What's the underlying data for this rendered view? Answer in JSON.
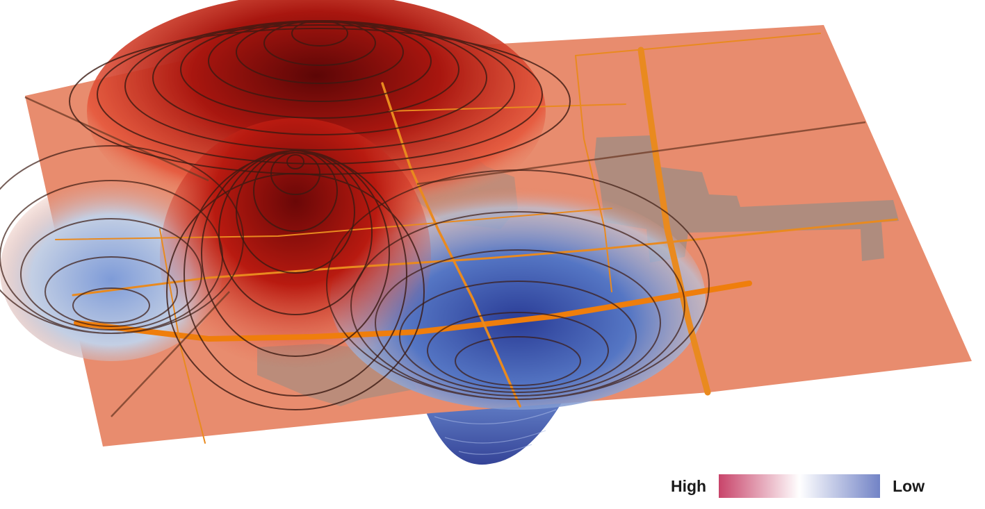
{
  "legend": {
    "high_label": "High",
    "low_label": "Low",
    "high_color": "#c8446a",
    "mid_color": "#ffffff",
    "low_color": "#7283c6"
  },
  "colors": {
    "surface_base": "#e88c6e",
    "peak_color": "#7a0d0a",
    "trough_color": "#2c3f9a",
    "road_color": "#e98a1f",
    "contour_color": "#3b1a12",
    "urban_color": "#a98d80"
  }
}
